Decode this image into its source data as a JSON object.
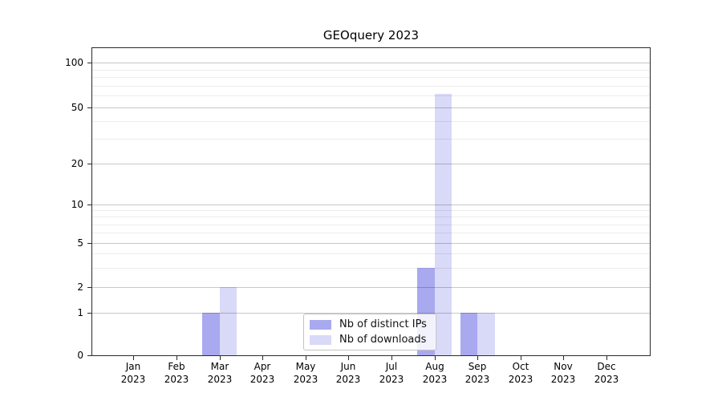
{
  "chart_data": {
    "type": "bar",
    "title": "GEOquery 2023",
    "categories": [
      "Jan 2023",
      "Feb 2023",
      "Mar 2023",
      "Apr 2023",
      "May 2023",
      "Jun 2023",
      "Jul 2023",
      "Aug 2023",
      "Sep 2023",
      "Oct 2023",
      "Nov 2023",
      "Dec 2023"
    ],
    "series": [
      {
        "name": "Nb of distinct IPs",
        "color": "#a9a9f0",
        "values": [
          0,
          0,
          1,
          0,
          0,
          0,
          0,
          3,
          1,
          0,
          0,
          0
        ]
      },
      {
        "name": "Nb of downloads",
        "color": "#d9d9f8",
        "values": [
          0,
          0,
          2,
          0,
          0,
          0,
          0,
          62,
          1,
          0,
          0,
          0
        ]
      }
    ],
    "xlabel": "",
    "ylabel": "",
    "yscale": "symlog",
    "yticks": [
      0,
      1,
      2,
      5,
      10,
      20,
      50,
      100
    ],
    "ytick_labels": [
      "0",
      "1",
      "2",
      "5",
      "10",
      "20",
      "50",
      "100"
    ],
    "minor_yticks": [
      3,
      4,
      6,
      7,
      8,
      9,
      30,
      40,
      60,
      70,
      80,
      90
    ],
    "ylim": [
      0,
      130
    ],
    "grid": "horizontal",
    "legend_position": "lower center"
  },
  "colors": {
    "background": "#ffffff",
    "axis": "#2a2a2a",
    "grid_major": "#c9c9c9",
    "grid_minor": "#ebebeb",
    "legend_border": "#c3c3c3",
    "bar_distinct_ips": "#a9a9f0",
    "bar_downloads": "#d9d9f8"
  }
}
